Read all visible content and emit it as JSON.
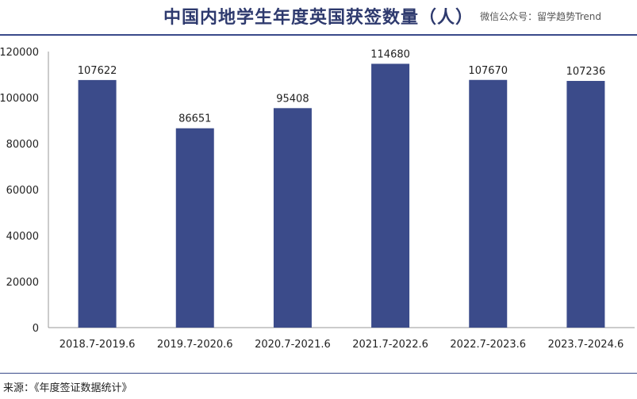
{
  "header": {
    "title": "中国内地学生年度英国获签数量（人）",
    "watermark": "微信公众号：留学趋势Trend"
  },
  "footer": {
    "source": "来源：《年度签证数据统计》"
  },
  "colors": {
    "bar": "#3b4b8a",
    "accent": "#2e3a6e"
  },
  "chart_data": {
    "type": "bar",
    "title": "中国内地学生年度英国获签数量（人）",
    "categories": [
      "2018.7-2019.6",
      "2019.7-2020.6",
      "2020.7-2021.6",
      "2021.7-2022.6",
      "2022.7-2023.6",
      "2023.7-2024.6"
    ],
    "values": [
      107622,
      86651,
      95408,
      114680,
      107670,
      107236
    ],
    "xlabel": "",
    "ylabel": "",
    "ylim": [
      0,
      120000
    ],
    "yticks": [
      0,
      20000,
      40000,
      60000,
      80000,
      100000,
      120000
    ],
    "grid": false,
    "legend": "none"
  }
}
